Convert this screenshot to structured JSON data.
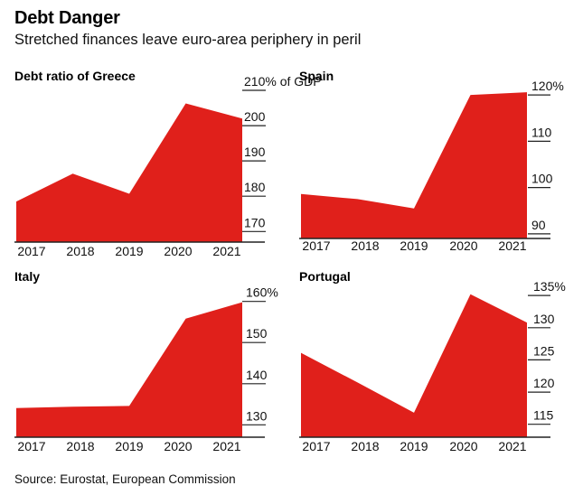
{
  "title": "Debt Danger",
  "subtitle": "Stretched finances leave euro-area periphery in peril",
  "source": "Source: Eurostat, European Commission",
  "colors": {
    "area": "#e0201b",
    "axis": "#222222",
    "text": "#111111"
  },
  "chart_data": [
    {
      "type": "area",
      "title": "Debt ratio of Greece",
      "categories": [
        "2017",
        "2018",
        "2019",
        "2020",
        "2021"
      ],
      "values": [
        178.5,
        186.4,
        180.7,
        206.3,
        202.0
      ],
      "ylim": [
        167,
        210
      ],
      "yticks": [
        170,
        180,
        190,
        200,
        210
      ],
      "ytick_labels": [
        "170",
        "180",
        "190",
        "200",
        "210% of GDP"
      ],
      "unit": "% of GDP"
    },
    {
      "type": "area",
      "title": "Spain",
      "categories": [
        "2017",
        "2018",
        "2019",
        "2020",
        "2021"
      ],
      "values": [
        98.6,
        97.5,
        95.5,
        120.0,
        120.6
      ],
      "ylim": [
        89,
        121
      ],
      "yticks": [
        90,
        100,
        110,
        120
      ],
      "ytick_labels": [
        "90",
        "100",
        "110",
        "120%"
      ],
      "unit": "%"
    },
    {
      "type": "area",
      "title": "Italy",
      "categories": [
        "2017",
        "2018",
        "2019",
        "2020",
        "2021"
      ],
      "values": [
        134.1,
        134.4,
        134.6,
        155.8,
        159.8
      ],
      "ylim": [
        127,
        163
      ],
      "yticks": [
        130,
        140,
        150,
        160
      ],
      "ytick_labels": [
        "130",
        "140",
        "150",
        "160%"
      ],
      "unit": "%"
    },
    {
      "type": "area",
      "title": "Portugal",
      "categories": [
        "2017",
        "2018",
        "2019",
        "2020",
        "2021"
      ],
      "values": [
        126.1,
        121.5,
        116.8,
        135.2,
        130.8
      ],
      "ylim": [
        113,
        136
      ],
      "yticks": [
        115,
        120,
        125,
        130,
        135
      ],
      "ytick_labels": [
        "115",
        "120",
        "125",
        "130",
        "135%"
      ],
      "unit": "%"
    }
  ]
}
